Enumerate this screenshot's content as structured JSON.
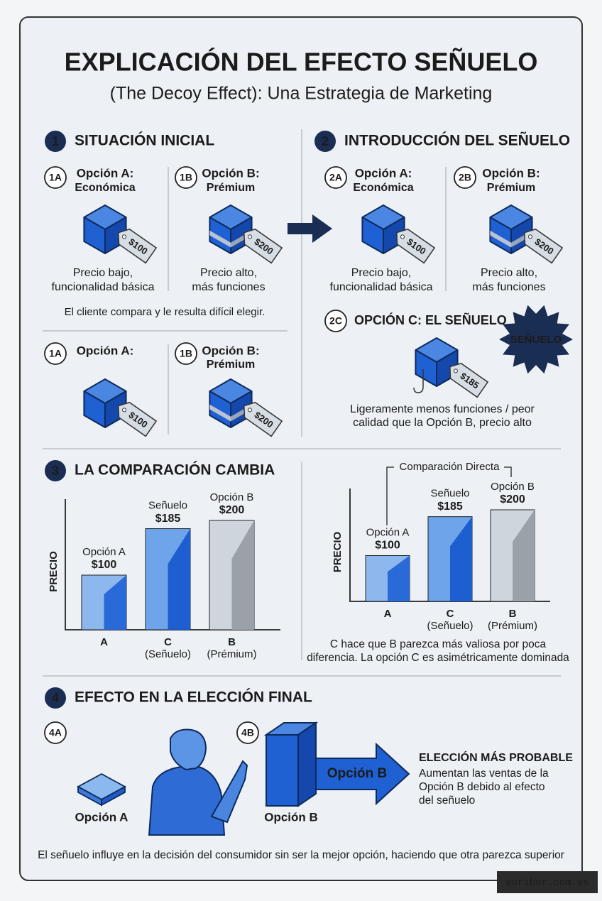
{
  "title": "EXPLICACIÓN DEL EFECTO SEÑUELO",
  "subtitle": "(The Decoy Effect): Una Estrategia de Marketing",
  "section1": {
    "number": "1",
    "heading": "SITUACIÓN INICIAL",
    "options": [
      {
        "badge": "1A",
        "name": "Opción A:",
        "tier": "Económica",
        "price": "$100",
        "desc": [
          "Precio bajo,",
          "funcionalidad básica"
        ]
      },
      {
        "badge": "1B",
        "name": "Opción B:",
        "tier": "Prémium",
        "price": "$200",
        "desc": [
          "Precio alto,",
          "más funciones"
        ]
      }
    ],
    "note": "El cliente compara y le resulta difícil elegir.",
    "options_bottom": [
      {
        "badge": "1A",
        "name": "Opción A:",
        "price": "$100"
      },
      {
        "badge": "1B",
        "name": "Opción B:",
        "tier": "Prémium",
        "price": "$200"
      }
    ]
  },
  "section2": {
    "number": "2",
    "heading": "INTRODUCCIÓN DEL SEÑUELO",
    "options": [
      {
        "badge": "2A",
        "name": "Opción A:",
        "tier": "Económica",
        "price": "$100",
        "desc": [
          "Precio bajo,",
          "funcionalidad básica"
        ]
      },
      {
        "badge": "2B",
        "name": "Opción B:",
        "tier": "Prémium",
        "price": "$200",
        "desc": [
          "Precio alto,",
          "más funciones"
        ]
      }
    ],
    "decoy": {
      "badge": "2C",
      "name": "OPCIÓN C: EL SEÑUELO",
      "burst": "SEÑUELO",
      "price": "$185",
      "desc": [
        "Ligeramente menos funciones / peor",
        "calidad que la Opción B, precio alto"
      ]
    }
  },
  "section3": {
    "number": "3",
    "heading": "LA COMPARACIÓN CAMBIA",
    "left_chart": {
      "axis_label": "PRECIO",
      "bars": [
        {
          "top": "Opción A",
          "value": 100,
          "value_label": "$100",
          "category": [
            "A"
          ]
        },
        {
          "top": "Señuelo",
          "value": 185,
          "value_label": "$185",
          "category": [
            "C",
            "(Señuelo)"
          ]
        },
        {
          "top": "Opción B",
          "value": 200,
          "value_label": "$200",
          "category": [
            "B",
            "(Prémium)"
          ]
        }
      ]
    },
    "right_chart": {
      "axis_label": "PRECIO",
      "bracket": "Comparación Directa",
      "bars": [
        {
          "top": "Opción A",
          "value": 100,
          "value_label": "$100",
          "category": [
            "A"
          ]
        },
        {
          "top": "Señuelo",
          "value": 185,
          "value_label": "$185",
          "category": [
            "C",
            "(Señuelo)"
          ]
        },
        {
          "top": "Opción B",
          "value": 200,
          "value_label": "$200",
          "category": [
            "B",
            "(Prémium)"
          ]
        }
      ]
    },
    "note": [
      "C hace que B parezca más valiosa por poca",
      "diferencia. La opción C es asimétricamente dominada"
    ]
  },
  "section4": {
    "number": "4",
    "heading": "EFECTO EN LA ELECCIÓN FINAL",
    "badge_a": "4A",
    "label_a": "Opción A",
    "badge_b": "4B",
    "label_b": "Opción B",
    "arrow": "Opción B",
    "result_title": "ELECCIÓN MÁS PROBABLE",
    "result_text": [
      "Aumentan las ventas de la",
      "Opción B debido al efecto",
      "del señuelo"
    ]
  },
  "footer": "El señuelo influye en la decisión del consumidor sin ser la mejor opción, haciendo que otra parezca superior",
  "watermark": "euribor.com.es"
}
